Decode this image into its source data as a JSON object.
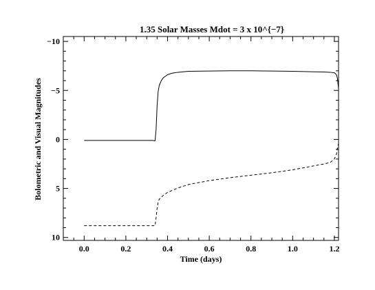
{
  "chart_data": {
    "type": "line",
    "title": "1.35 Solar Masses  Mdot = 3 x 10^{−7}",
    "xlabel": "Time (days)",
    "ylabel": "Bolometric and Visual Magnitudes",
    "xlim": [
      -0.1,
      1.22
    ],
    "ylim": [
      10.3,
      -10.5
    ],
    "y_inverted": true,
    "grid": false,
    "legend": "none",
    "x_ticks": [
      0.0,
      0.2,
      0.4,
      0.6,
      0.8,
      1.0,
      1.2
    ],
    "x_tick_labels": [
      "0.0",
      "0.2",
      "0.4",
      "0.6",
      "0.8",
      "1.0",
      "1.2"
    ],
    "y_ticks": [
      -10,
      -5,
      0,
      5,
      10
    ],
    "y_tick_labels": [
      "−10",
      "−5",
      "0",
      "5",
      "10"
    ],
    "series": [
      {
        "style": "solid",
        "color": "#000000",
        "x": [
          0.0,
          0.1,
          0.2,
          0.3,
          0.33,
          0.34,
          0.345,
          0.35,
          0.355,
          0.36,
          0.37,
          0.38,
          0.39,
          0.4,
          0.42,
          0.45,
          0.5,
          0.6,
          0.7,
          0.8,
          0.9,
          1.0,
          1.1,
          1.15,
          1.18,
          1.2,
          1.21,
          1.215,
          1.22
        ],
        "y": [
          0.1,
          0.1,
          0.1,
          0.1,
          0.1,
          0.15,
          -1.0,
          -3.5,
          -4.9,
          -5.5,
          -6.0,
          -6.3,
          -6.45,
          -6.6,
          -6.75,
          -6.85,
          -6.95,
          -6.98,
          -7.0,
          -7.0,
          -6.98,
          -6.95,
          -6.9,
          -6.88,
          -6.85,
          -6.8,
          -6.6,
          -6.2,
          -5.2
        ]
      },
      {
        "style": "dashed",
        "color": "#000000",
        "x": [
          0.0,
          0.1,
          0.2,
          0.3,
          0.34,
          0.345,
          0.35,
          0.355,
          0.36,
          0.38,
          0.4,
          0.45,
          0.5,
          0.6,
          0.7,
          0.8,
          0.9,
          1.0,
          1.05,
          1.1,
          1.15,
          1.18,
          1.2,
          1.21,
          1.215,
          1.22
        ],
        "y": [
          8.8,
          8.8,
          8.8,
          8.8,
          8.8,
          8.0,
          7.0,
          6.4,
          6.1,
          5.7,
          5.4,
          4.95,
          4.6,
          4.2,
          3.9,
          3.65,
          3.4,
          3.1,
          2.9,
          2.7,
          2.5,
          2.35,
          2.0,
          1.5,
          0.9,
          0.4
        ]
      }
    ]
  }
}
